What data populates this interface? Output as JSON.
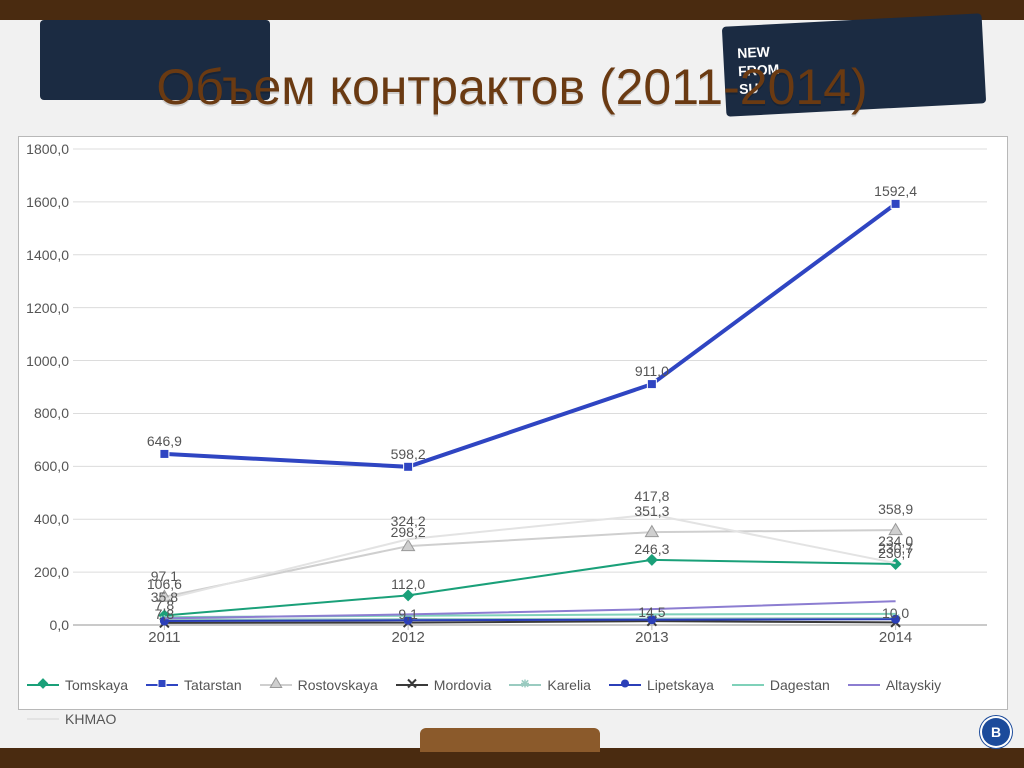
{
  "title": "Объем контрактов (2011-2014)",
  "hse_badge": "В",
  "chart": {
    "type": "line",
    "background_color": "#ffffff",
    "grid_color": "#dcdcdc",
    "axis_color": "#b8b8b8",
    "label_color": "#595959",
    "title_color": "#6a3a12",
    "title_fontsize": 50,
    "tick_fontsize": 14,
    "x_categories": [
      "2011",
      "2012",
      "2013",
      "2014"
    ],
    "y": {
      "min": 0,
      "max": 1800,
      "step": 200
    },
    "y_tick_labels": [
      "0,0",
      "200,0",
      "400,0",
      "600,0",
      "800,0",
      "1000,0",
      "1200,0",
      "1400,0",
      "1600,0",
      "1800,0"
    ],
    "line_width_main": 3,
    "line_width_thin": 2,
    "marker_size": 9,
    "series": [
      {
        "name": "Tomskaya",
        "color": "#1aa079",
        "marker": "diamond",
        "values": [
          35.8,
          112.0,
          246.3,
          230.7
        ],
        "labels": [
          "35,8",
          "112,0",
          "246,3",
          "230,7"
        ]
      },
      {
        "name": "Tatarstan",
        "color": "#2f45c2",
        "marker": "square",
        "values": [
          646.9,
          598.2,
          911.0,
          1592.4
        ],
        "labels": [
          "646,9",
          "598,2",
          "911,0",
          "1592,4"
        ],
        "bold": true
      },
      {
        "name": "Rostovskaya",
        "color": "#cfcfcf",
        "marker": "triangle",
        "values": [
          106.6,
          298.2,
          351.3,
          358.9
        ],
        "labels": [
          "106,6",
          "298,2",
          "351,3",
          "358,9"
        ]
      },
      {
        "name": "Mordovia",
        "color": "#3a3a3a",
        "marker": "x",
        "values": [
          7.8,
          9.1,
          14.5,
          10.0
        ],
        "labels": [
          "7,8",
          "9,1",
          "14,5",
          "10,0"
        ]
      },
      {
        "name": "Karelia",
        "color": "#9acbc0",
        "marker": "star",
        "values": [
          20.0,
          22.0,
          24.0,
          26.0
        ],
        "labels": []
      },
      {
        "name": "Lipetskaya",
        "color": "#2b3fb8",
        "marker": "circle",
        "values": [
          15.0,
          18.0,
          20.0,
          22.0
        ],
        "labels": []
      },
      {
        "name": "Dagestan",
        "color": "#7fd1b9",
        "marker": "none",
        "values": [
          30.0,
          35.0,
          40.0,
          42.0
        ],
        "labels": []
      },
      {
        "name": "Altayskiy",
        "color": "#8c7dd1",
        "marker": "none",
        "values": [
          25.0,
          40.0,
          60.0,
          90.0
        ],
        "labels": []
      },
      {
        "name": "KHMAO",
        "color": "#e3e3e3",
        "marker": "none",
        "values": [
          97.1,
          324.2,
          417.8,
          234.0
        ],
        "labels": [
          "97,1",
          "324,2",
          "417,8",
          "234,0"
        ]
      }
    ],
    "extra_labels": [
      {
        "text": "106,6",
        "x_index": 0,
        "y": 115
      },
      {
        "text": "97,1",
        "x_index": 0,
        "y": 145
      },
      {
        "text": "35,8",
        "x_index": 0,
        "y": 65
      },
      {
        "text": "7,8",
        "x_index": 0,
        "y": 35
      },
      {
        "text": "324,2",
        "x_index": 1,
        "y": 350
      },
      {
        "text": "298,2",
        "x_index": 1,
        "y": 310
      },
      {
        "text": "417,8",
        "x_index": 2,
        "y": 445
      },
      {
        "text": "351,3",
        "x_index": 2,
        "y": 390
      },
      {
        "text": "358,9",
        "x_index": 3,
        "y": 398
      },
      {
        "text": "234,0",
        "x_index": 3,
        "y": 275
      },
      {
        "text": "230,7",
        "x_index": 3,
        "y": 250
      }
    ]
  }
}
